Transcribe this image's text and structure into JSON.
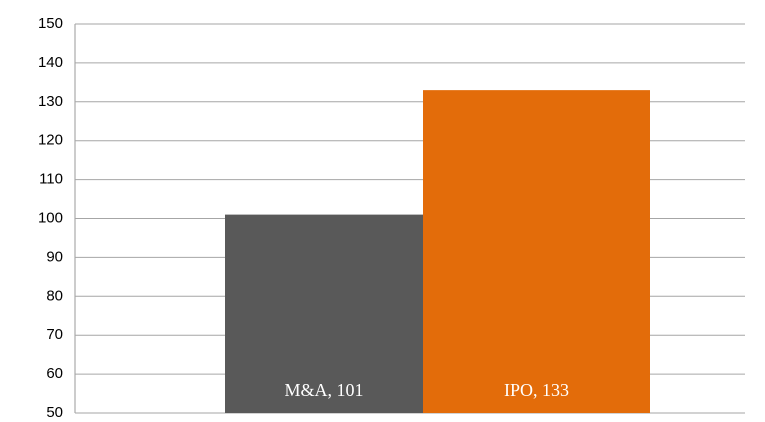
{
  "chart_data": {
    "type": "bar",
    "values": [
      101,
      133
    ],
    "value_labels": [
      "M&A, 101",
      "IPO, 133"
    ],
    "colors": [
      "#595959",
      "#e36c0a"
    ],
    "ylim": [
      50,
      150
    ],
    "yticks": [
      50,
      60,
      70,
      80,
      90,
      100,
      110,
      120,
      130,
      140,
      150
    ],
    "grid": true
  }
}
